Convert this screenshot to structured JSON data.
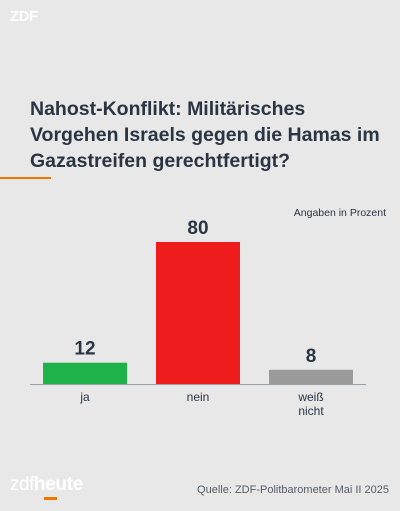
{
  "header": {
    "logo_text": "ZDF"
  },
  "title": "Nahost-Konflikt: Militärisches Vorgehen Israels gegen die Hamas im Gazastreifen gerechtfertigt?",
  "chart_data": {
    "type": "bar",
    "title": "Nahost-Konflikt: Militärisches Vorgehen Israels gegen die Hamas im Gazastreifen gerechtfertigt?",
    "unit_note": "Angaben in Prozent",
    "categories": [
      "ja",
      "nein",
      "weiß nicht"
    ],
    "values": [
      12,
      80,
      8
    ],
    "colors": [
      "#1fb14a",
      "#ee1c1c",
      "#9a9a9a"
    ],
    "ylim": [
      0,
      80
    ],
    "grid": false,
    "legend": "none"
  },
  "footer": {
    "brand_part1": "zdf",
    "brand_part2": "heute",
    "source": "Quelle: ZDF-Politbarometer Mai II 2025"
  },
  "colors": {
    "accent": "#f07800",
    "background": "#e8e8e8",
    "text": "#2b3442"
  }
}
